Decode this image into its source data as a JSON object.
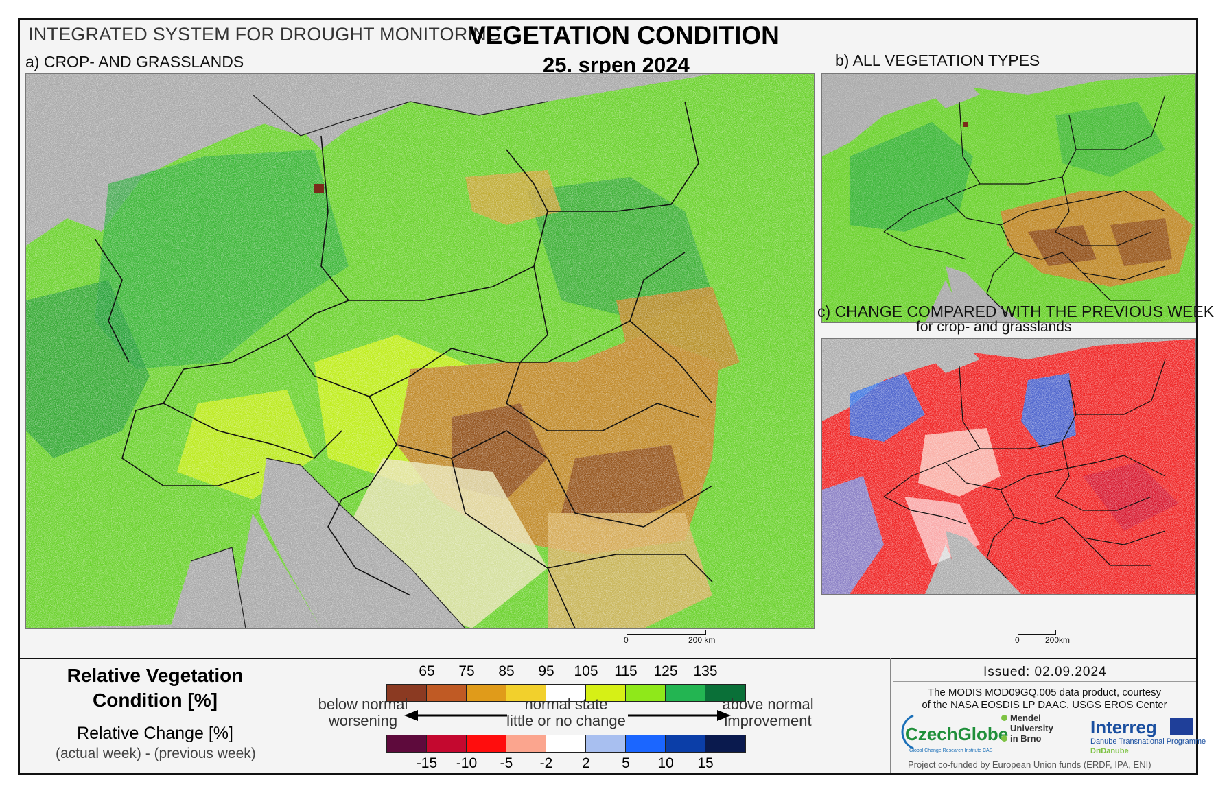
{
  "header": {
    "system_title": "INTEGRATED SYSTEM FOR DROUGHT MONITORING",
    "main_title": "VEGETATION CONDITION",
    "date": "25. srpen 2024"
  },
  "panels": {
    "a": {
      "label": "a) CROP- AND GRASSLANDS"
    },
    "b": {
      "label": "b) ALL VEGETATION TYPES"
    },
    "c": {
      "label": "c) CHANGE COMPARED WITH THE PREVIOUS WEEK",
      "sublabel": "for crop- and grasslands"
    }
  },
  "scalebar": {
    "main": {
      "start": "0",
      "end": "200 km"
    },
    "small": {
      "start": "0",
      "end": "200km"
    }
  },
  "legend": {
    "rvc_title_line1": "Relative Vegetation",
    "rvc_title_line2": "Condition [%]",
    "rc_title": "Relative Change [%]",
    "rc_subtitle": "(actual week) - (previous week)",
    "condition_ticks": [
      "65",
      "75",
      "85",
      "95",
      "105",
      "115",
      "125",
      "135"
    ],
    "condition_colors": [
      "#8b3a22",
      "#c05a24",
      "#e09b1a",
      "#f2d02c",
      "#ffffff",
      "#d6f016",
      "#8fe81a",
      "#23b552",
      "#0a7038"
    ],
    "change_ticks": [
      "-15",
      "-10",
      "-5",
      "-2",
      "2",
      "5",
      "10",
      "15"
    ],
    "change_colors": [
      "#5e0a3c",
      "#c4082f",
      "#ff0d0d",
      "#fba58e",
      "#ffffff",
      "#a8bff0",
      "#1b66ff",
      "#0b3ea8",
      "#0a1a4e"
    ],
    "left_caption": [
      "below normal",
      "worsening"
    ],
    "center_caption": [
      "normal state",
      "little or no change"
    ],
    "right_caption": [
      "above normal",
      "improvement"
    ]
  },
  "footer": {
    "issued": "Issued: 02.09.2024",
    "credit_line1": "The MODIS MOD09GQ.005 data product, courtesy",
    "credit_line2": "of the NASA EOSDIS LP DAAC, USGS EROS Center",
    "funded": "Project co-funded by European Union funds (ERDF, IPA, ENI)"
  },
  "logos": {
    "czechglobe": "CzechGlobe",
    "czechglobe_sub": "Global Change Research Institute CAS",
    "mendel": [
      "Mendel",
      "University",
      "in Brno"
    ],
    "interreg": "Interreg",
    "interreg_sub": "Danube Transnational Programme",
    "interreg_project": "DriDanube"
  },
  "map_palette": {
    "sea": "#a9a9a9",
    "green": "#5fcf2e",
    "dark_green": "#1f9a3c",
    "yellow_green": "#c9ef1a",
    "brown": "#b8741e",
    "dark_brown": "#8a4a1a",
    "red": "#ef1d1d",
    "blue": "#2a6bea",
    "white": "#ffffff"
  }
}
